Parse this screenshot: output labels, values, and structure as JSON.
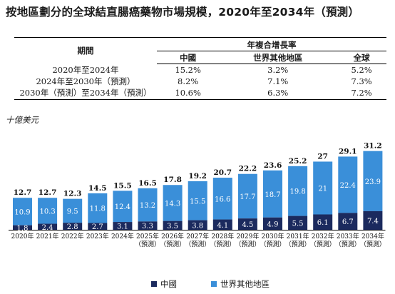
{
  "title": "按地區劃分的全球結直腸癌藥物市場規模，2020年至2034年（預測）",
  "cagr_table": {
    "header_period": "期間",
    "header_cagr": "年複合增長率",
    "columns": [
      "中國",
      "世界其他地區",
      "全球"
    ],
    "rows": [
      {
        "period": "2020年至2024年",
        "values": [
          "15.2%",
          "3.2%",
          "5.2%"
        ]
      },
      {
        "period": "2024年至2030年（預測）",
        "values": [
          "8.2%",
          "7.1%",
          "7.3%"
        ]
      },
      {
        "period": "2030年（預測）至2034年（預測）",
        "values": [
          "10.6%",
          "6.3%",
          "7.2%"
        ]
      }
    ]
  },
  "unit_label": "十億美元",
  "colors": {
    "china": "#1b2a5e",
    "rest_of_world": "#3a8fd9"
  },
  "chart_data": {
    "type": "bar",
    "stacked": true,
    "categories": [
      [
        "2020年"
      ],
      [
        "2021年"
      ],
      [
        "2022年"
      ],
      [
        "2023年"
      ],
      [
        "2024年"
      ],
      [
        "2025年",
        "（預測）"
      ],
      [
        "2026年",
        "（預測）"
      ],
      [
        "2027年",
        "（預測）"
      ],
      [
        "2028年",
        "（預測）"
      ],
      [
        "2029年",
        "（預測）"
      ],
      [
        "2030年",
        "（預測）"
      ],
      [
        "2031年",
        "（預測）"
      ],
      [
        "2032年",
        "（預測）"
      ],
      [
        "2033年",
        "（預測）"
      ],
      [
        "2034年",
        "（預測）"
      ]
    ],
    "series": [
      {
        "name": "中國",
        "values": [
          1.8,
          2.4,
          2.8,
          2.7,
          3.1,
          3.3,
          3.5,
          3.8,
          4.1,
          4.5,
          4.9,
          5.5,
          6.1,
          6.7,
          7.4
        ]
      },
      {
        "name": "世界其他地區",
        "values": [
          10.9,
          10.3,
          9.5,
          11.8,
          12.4,
          13.2,
          14.3,
          15.5,
          16.6,
          17.7,
          18.7,
          19.8,
          21.0,
          22.4,
          23.9
        ]
      }
    ],
    "totals": [
      12.7,
      12.7,
      12.3,
      14.5,
      15.5,
      16.5,
      17.8,
      19.2,
      20.7,
      22.2,
      23.6,
      25.2,
      27.0,
      29.1,
      31.2
    ],
    "legend_position": "bottom",
    "grid": false
  }
}
